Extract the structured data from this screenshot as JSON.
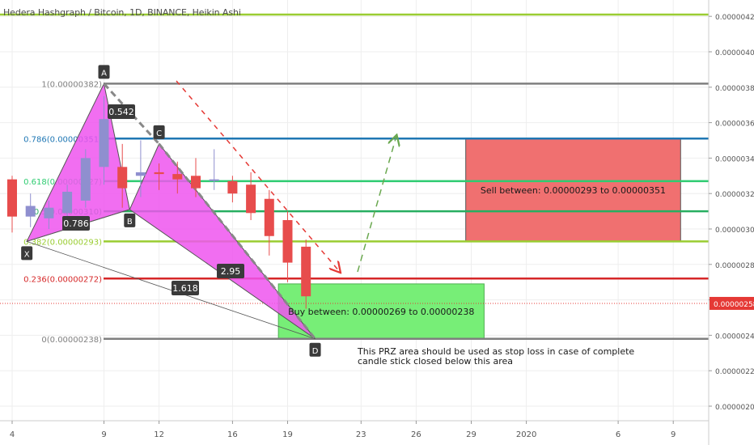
{
  "chart_title": "Hedera Hashgraph / Bitcoin, 1D, BINANCE, Heikin Ashi",
  "current_price_label": "0.00000258",
  "colors": {
    "bull": "#8f8fcf",
    "bear": "#e74c4c",
    "pattern_fill": "#ee55ee",
    "sell_box": "#f07070",
    "buy_box": "#77ee77",
    "grid": "#eeeeee"
  },
  "chart_data": {
    "type": "candlestick",
    "title": "Hedera Hashgraph / Bitcoin, 1D, BINANCE, Heikin Ashi",
    "y_axis": {
      "ticks": [
        "0.00000420",
        "0.00000400",
        "0.00000380",
        "0.00000360",
        "0.00000340",
        "0.00000320",
        "0.00000300",
        "0.00000280",
        "0.00000260",
        "0.00000240",
        "0.00000220",
        "0.00000200"
      ],
      "tick_values": [
        420,
        400,
        380,
        360,
        340,
        320,
        300,
        280,
        260,
        240,
        220,
        200
      ],
      "range": [
        195,
        430
      ],
      "unit": "1e-8 BTC"
    },
    "x_axis": {
      "ticks": [
        "4",
        "9",
        "12",
        "16",
        "19",
        "23",
        "26",
        "29",
        "2020",
        "6",
        "9"
      ],
      "tick_days": [
        0,
        5,
        8,
        12,
        15,
        19,
        22,
        25,
        28,
        33,
        36
      ]
    },
    "candles": [
      {
        "day": -1,
        "o": 317,
        "h": 337,
        "l": 305,
        "c": 330
      },
      {
        "day": 0,
        "o": 328,
        "h": 330,
        "l": 298,
        "c": 307
      },
      {
        "day": 1,
        "o": 307,
        "h": 320,
        "l": 301,
        "c": 313
      },
      {
        "day": 2,
        "o": 306,
        "h": 316,
        "l": 300,
        "c": 312
      },
      {
        "day": 3,
        "o": 309,
        "h": 325,
        "l": 305,
        "c": 321
      },
      {
        "day": 4,
        "o": 316,
        "h": 345,
        "l": 312,
        "c": 340
      },
      {
        "day": 5,
        "o": 335,
        "h": 375,
        "l": 325,
        "c": 362
      },
      {
        "day": 6,
        "o": 335,
        "h": 348,
        "l": 312,
        "c": 323
      },
      {
        "day": 7,
        "o": 330,
        "h": 350,
        "l": 318,
        "c": 332
      },
      {
        "day": 8,
        "o": 332,
        "h": 337,
        "l": 322,
        "c": 331
      },
      {
        "day": 9,
        "o": 331,
        "h": 338,
        "l": 320,
        "c": 328
      },
      {
        "day": 10,
        "o": 330,
        "h": 340,
        "l": 318,
        "c": 323
      },
      {
        "day": 11,
        "o": 328,
        "h": 345,
        "l": 322,
        "c": 328
      },
      {
        "day": 12,
        "o": 327,
        "h": 330,
        "l": 315,
        "c": 320
      },
      {
        "day": 13,
        "o": 325,
        "h": 332,
        "l": 305,
        "c": 309
      },
      {
        "day": 14,
        "o": 317,
        "h": 322,
        "l": 285,
        "c": 296
      },
      {
        "day": 15,
        "o": 305,
        "h": 310,
        "l": 270,
        "c": 281
      },
      {
        "day": 16,
        "o": 290,
        "h": 294,
        "l": 255,
        "c": 262
      }
    ],
    "fib_levels": [
      {
        "label": "1(0.00000382)",
        "price": 382,
        "color": "#7f7f7f"
      },
      {
        "label": "0.786(0.00000351)",
        "price": 351,
        "color": "#1f77b4"
      },
      {
        "label": "0.618(0.00000327)",
        "price": 327,
        "color": "#2ecc71"
      },
      {
        "label": "0.5(0.00000310)",
        "price": 310,
        "color": "#27ae60"
      },
      {
        "label": "0.382(0.00000293)",
        "price": 293,
        "color": "#9acd32"
      },
      {
        "label": "0.236(0.00000272)",
        "price": 272,
        "color": "#d62728"
      },
      {
        "label": "0(0.00000238)",
        "price": 238,
        "color": "#7f7f7f"
      }
    ],
    "extra_level": {
      "price": 421,
      "color": "#9acd32"
    },
    "current_price": 258,
    "pattern_points": [
      {
        "label": "X",
        "day": 0.8,
        "price": 293
      },
      {
        "label": "A",
        "day": 5,
        "price": 382
      },
      {
        "label": "B",
        "day": 6.4,
        "price": 311
      },
      {
        "label": "C",
        "day": 8,
        "price": 348
      },
      {
        "label": "D",
        "day": 16.5,
        "price": 238
      }
    ],
    "ratios": [
      "0.542",
      "0.786",
      "2.95",
      "1.618"
    ],
    "sell_zone": {
      "text": "Sell between: 0.00000293 to 0.00000351",
      "low": 293,
      "high": 351,
      "day_start": 24.7,
      "day_end": 36.4
    },
    "buy_zone": {
      "text": "Buy between: 0.00000269 to 0.00000238",
      "low": 238,
      "high": 269,
      "day_start": 14.5,
      "day_end": 25.7
    },
    "note_lines": [
      "This PRZ area should be used as stop loss in case of complete",
      "candle stick closed below this area"
    ]
  }
}
